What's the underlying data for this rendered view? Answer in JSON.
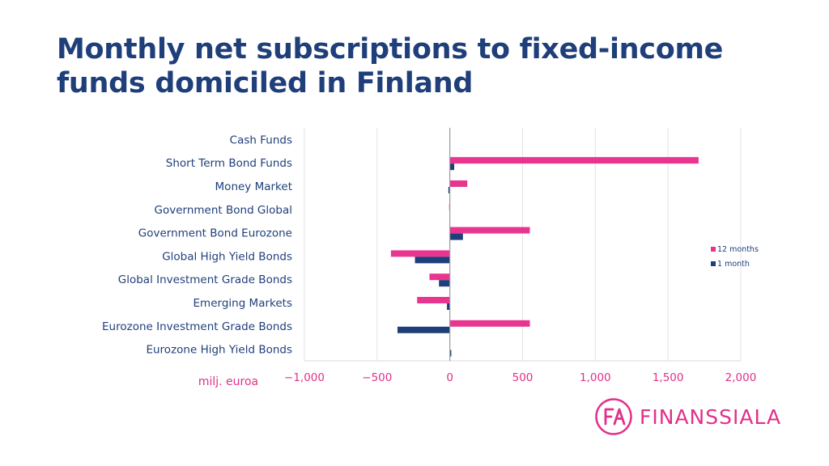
{
  "title": "Monthly net subscriptions to fixed-income funds domiciled in Finland",
  "chart_data": {
    "type": "bar",
    "orientation": "horizontal",
    "unit_label": "milj. euroa",
    "categories": [
      "Cash Funds",
      "Short Term Bond Funds",
      "Money Market",
      "Government Bond Global",
      "Government Bond Eurozone",
      "Global High Yield Bonds",
      "Global Investment Grade Bonds",
      "Emerging Markets",
      "Eurozone Investment Grade Bonds",
      "Eurozone High Yield Bonds"
    ],
    "series": [
      {
        "name": "12 months",
        "color": "#e8358f",
        "values": [
          0,
          1710,
          120,
          -5,
          550,
          -405,
          -140,
          -225,
          550,
          0
        ]
      },
      {
        "name": "1 month",
        "color": "#1f3f7a",
        "values": [
          0,
          30,
          -10,
          0,
          90,
          -240,
          -75,
          -20,
          -360,
          10
        ]
      }
    ],
    "xlim": [
      -1000,
      2000
    ],
    "xticks": [
      -1000,
      -500,
      0,
      500,
      1000,
      1500,
      2000
    ],
    "xtick_labels": [
      "−1,000",
      "−500",
      "0",
      "500",
      "1,000",
      "1,500",
      "2,000"
    ],
    "grid": true,
    "legend_position": "right"
  },
  "logo": {
    "text": "FINANSSIALA",
    "mark": "FA"
  }
}
